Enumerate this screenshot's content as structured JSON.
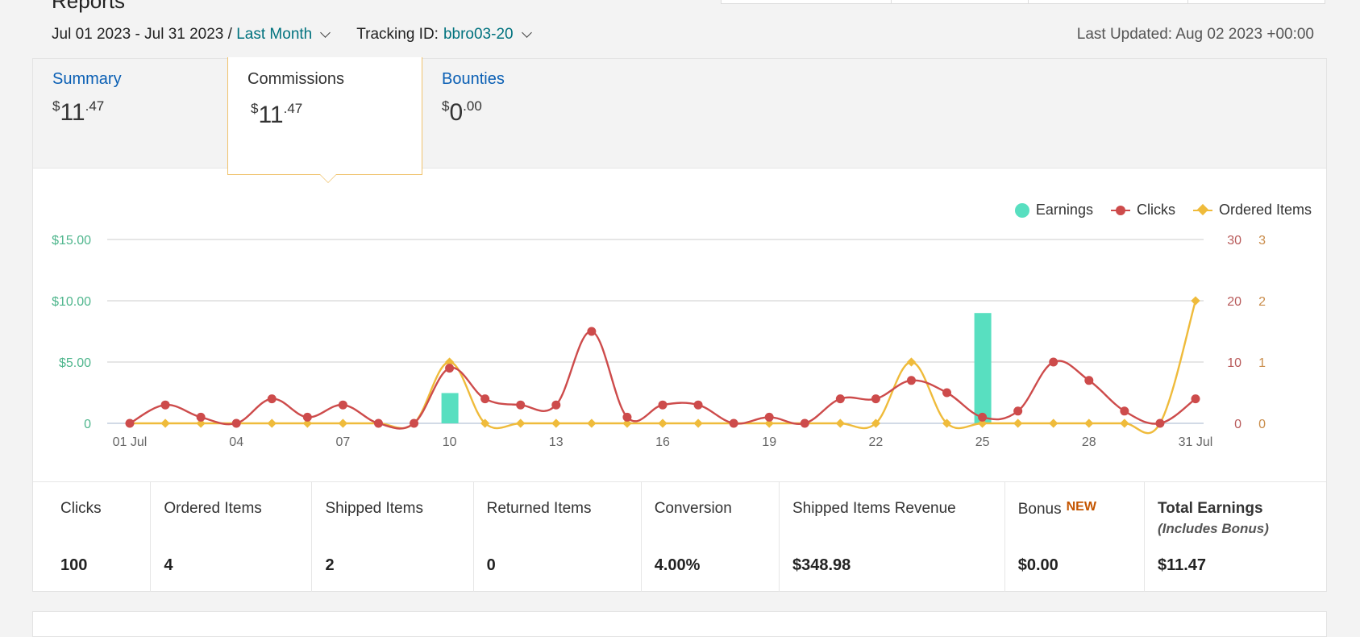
{
  "header": {
    "title_stub": "Reports",
    "date_range": "Jul 01 2023 - Jul 31 2023",
    "separator": " / ",
    "period_label": "Last Month",
    "tracking_label": "Tracking ID:",
    "tracking_id": "bbro03-20",
    "last_updated": "Last Updated: Aug 02 2023 +00:00"
  },
  "tabs": [
    {
      "label": "Summary",
      "currency": "$",
      "whole": "11",
      "cents": ".47"
    },
    {
      "label": "Commissions",
      "currency": "$",
      "whole": "11",
      "cents": ".47"
    },
    {
      "label": "Bounties",
      "currency": "$",
      "whole": "0",
      "cents": ".00"
    }
  ],
  "colors": {
    "earnings": "#58dfc0",
    "clicks": "#cd4b4b",
    "ordered": "#efbb3b",
    "left_axis": "#4fb68d",
    "grid": "#d8d8d8"
  },
  "chart_data": {
    "type": "line",
    "x": [
      "01 Jul",
      "02",
      "03",
      "04",
      "05",
      "06",
      "07",
      "08",
      "09",
      "10",
      "11",
      "12",
      "13",
      "14",
      "15",
      "16",
      "17",
      "18",
      "19",
      "20",
      "21",
      "22",
      "23",
      "24",
      "25",
      "26",
      "27",
      "28",
      "29",
      "30",
      "31 Jul"
    ],
    "x_tick_labels": [
      "01 Jul",
      "04",
      "07",
      "10",
      "13",
      "16",
      "19",
      "22",
      "25",
      "28",
      "31 Jul"
    ],
    "legend": [
      "Earnings",
      "Clicks",
      "Ordered Items"
    ],
    "legend_position": "top-right",
    "grid": true,
    "axes": {
      "left": {
        "ticks": [
          "0",
          "$5.00",
          "$10.00",
          "$15.00"
        ],
        "ylim": [
          0,
          15
        ]
      },
      "right1": {
        "ticks": [
          "0",
          "10",
          "20",
          "30"
        ],
        "ylim": [
          0,
          30
        ]
      },
      "right2": {
        "ticks": [
          "0",
          "1",
          "2",
          "3"
        ],
        "ylim": [
          0,
          3
        ]
      }
    },
    "series": [
      {
        "name": "Earnings",
        "kind": "bar",
        "axis": "left",
        "values": [
          0,
          0,
          0,
          0,
          0,
          0,
          0,
          0,
          0,
          2.47,
          0,
          0,
          0,
          0,
          0,
          0,
          0,
          0,
          0,
          0,
          0,
          0,
          0,
          0,
          9.0,
          0,
          0,
          0,
          0,
          0,
          0
        ]
      },
      {
        "name": "Clicks",
        "kind": "line",
        "axis": "right1",
        "values": [
          0,
          3,
          1,
          0,
          4,
          1,
          3,
          0,
          0,
          9,
          4,
          3,
          3,
          15,
          1,
          3,
          3,
          0,
          1,
          0,
          4,
          4,
          7,
          5,
          1,
          2,
          10,
          7,
          2,
          0,
          4
        ]
      },
      {
        "name": "Ordered Items",
        "kind": "line",
        "axis": "right2",
        "values": [
          0,
          0,
          0,
          0,
          0,
          0,
          0,
          0,
          0,
          1,
          0,
          0,
          0,
          0,
          0,
          0,
          0,
          0,
          0,
          0,
          0,
          0,
          1,
          0,
          0,
          0,
          0,
          0,
          0,
          0,
          2
        ]
      }
    ]
  },
  "metrics": [
    {
      "label": "Clicks",
      "value": "100"
    },
    {
      "label": "Ordered Items",
      "value": "4"
    },
    {
      "label": "Shipped Items",
      "value": "2"
    },
    {
      "label": "Returned Items",
      "value": "0"
    },
    {
      "label": "Conversion",
      "value": "4.00%"
    },
    {
      "label": "Shipped Items Revenue",
      "value": "$348.98"
    },
    {
      "label": "Bonus",
      "badge": "NEW",
      "value": "$0.00"
    },
    {
      "label": "Total Earnings",
      "sub": "(Includes Bonus)",
      "value": "$11.47"
    }
  ]
}
